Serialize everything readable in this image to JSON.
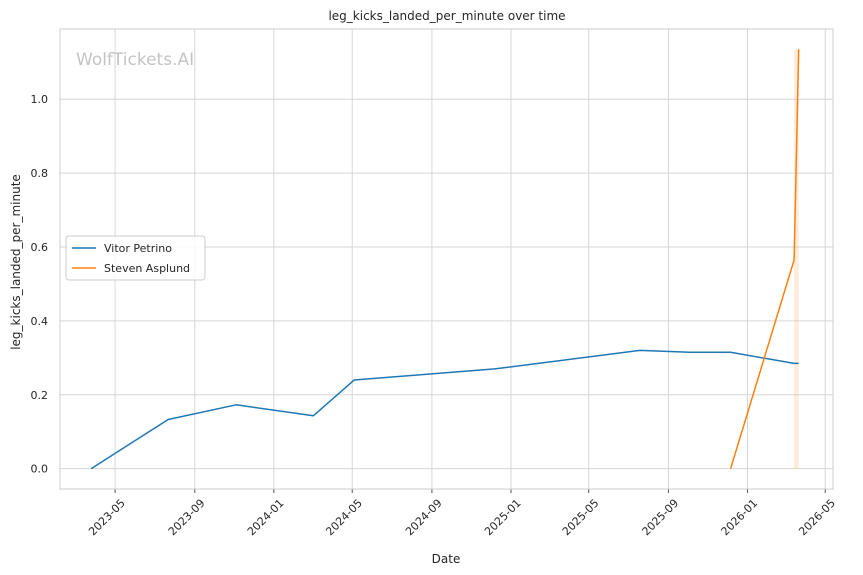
{
  "chart_data": {
    "type": "line",
    "title": "leg_kicks_landed_per_minute over time",
    "xlabel": "Date",
    "ylabel": "leg_kicks_landed_per_minute",
    "watermark": "WolfTickets.AI",
    "x_ticks": [
      "2023-05",
      "2023-09",
      "2024-01",
      "2024-05",
      "2024-09",
      "2025-01",
      "2025-05",
      "2025-09",
      "2026-01",
      "2026-05"
    ],
    "y_ticks": [
      "0.0",
      "0.2",
      "0.4",
      "0.6",
      "0.8",
      "1.0"
    ],
    "ylim": [
      -0.055,
      1.19
    ],
    "xlim": [
      "2023-02-05",
      "2026-05-13"
    ],
    "grid": true,
    "legend_position": "center-left",
    "series": [
      {
        "name": "Vitor Petrino",
        "color": "#1f77b4",
        "points": [
          {
            "x": "2023-03-25",
            "y": 0.0
          },
          {
            "x": "2023-07-22",
            "y": 0.133
          },
          {
            "x": "2023-11-04",
            "y": 0.173
          },
          {
            "x": "2024-03-02",
            "y": 0.143
          },
          {
            "x": "2024-05-04",
            "y": 0.24
          },
          {
            "x": "2024-12-07",
            "y": 0.27
          },
          {
            "x": "2025-07-19",
            "y": 0.32
          },
          {
            "x": "2025-10-04",
            "y": 0.315
          },
          {
            "x": "2025-12-06",
            "y": 0.315
          },
          {
            "x": "2026-03-14",
            "y": 0.285
          },
          {
            "x": "2026-03-21",
            "y": 0.285
          }
        ]
      },
      {
        "name": "Steven Asplund",
        "color": "#ff7f0e",
        "points": [
          {
            "x": "2025-12-06",
            "y": 0.0
          },
          {
            "x": "2026-03-14",
            "y": 0.565
          },
          {
            "x": "2026-03-21",
            "y": 1.135
          }
        ]
      }
    ]
  }
}
